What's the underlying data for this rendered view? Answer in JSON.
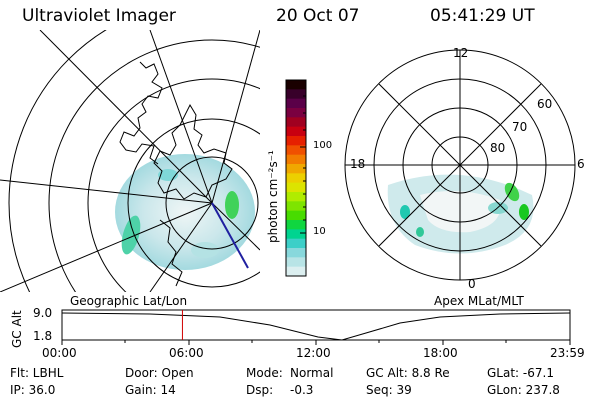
{
  "header": {
    "instrument": "Ultraviolet Imager",
    "date": "20 Oct 07",
    "time": "05:41:29 UT"
  },
  "geo_map": {
    "label": "Geographic Lat/Lon"
  },
  "apex_map": {
    "label": "Apex MLat/MLT",
    "mlt_labels": {
      "top": "12",
      "left": "18",
      "right": "6",
      "bottom": "0"
    },
    "lat_labels": [
      "60",
      "70",
      "80"
    ]
  },
  "colorbar": {
    "unit_label": "photon cm⁻²s⁻¹",
    "ticks": [
      "100",
      "10"
    ],
    "colors": [
      "#1a0000",
      "#38002a",
      "#5a0048",
      "#7a0040",
      "#a00020",
      "#c80010",
      "#e62000",
      "#f05000",
      "#f27c00",
      "#f0a800",
      "#ecd000",
      "#dce400",
      "#b0ec00",
      "#7ee400",
      "#48dc00",
      "#10d640",
      "#00d490",
      "#3ccfc8",
      "#88d8dc",
      "#b8e4e6",
      "#dceff0"
    ]
  },
  "altitude_panel": {
    "ylabel": "GC Alt",
    "y_ticks": [
      "9.0",
      "1.8"
    ],
    "x_ticks": [
      "00:00",
      "06:00",
      "12:00",
      "18:00",
      "23:59"
    ],
    "current_time_hours": 5.69
  },
  "status": {
    "row1": {
      "filter": "Flt: LBHL",
      "door": "Door: Open",
      "mode_label": "Mode:",
      "mode_value": "Normal",
      "gc_alt": "GC Alt: 8.8 Re",
      "glat": "GLat: -67.1"
    },
    "row2": {
      "ip": "IP: 36.0",
      "gain": "Gain: 14",
      "dsp_label": "Dsp:",
      "dsp_value": "-0.3",
      "seq": "Seq: 39",
      "glon": "GLon: 237.8"
    }
  }
}
